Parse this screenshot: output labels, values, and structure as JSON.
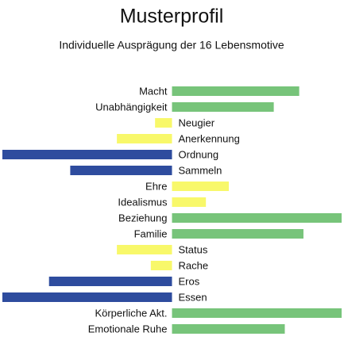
{
  "chart_data": {
    "type": "diverging_bar",
    "title": "Musterprofil",
    "subtitle": "Individuelle Ausprägung der 16 Lebensmotive",
    "categories": [
      "Macht",
      "Unabhängigkeit",
      "Neugier",
      "Anerkennung",
      "Ordnung",
      "Sammeln",
      "Ehre",
      "Idealismus",
      "Beziehung",
      "Familie",
      "Status",
      "Rache",
      "Eros",
      "Essen",
      "Körperliche Akt.",
      "Emotionale Ruhe"
    ],
    "values": [
      1.5,
      1.2,
      -0.2,
      -0.65,
      -2.0,
      -1.2,
      0.67,
      0.4,
      2.0,
      1.55,
      -0.65,
      -0.25,
      -1.45,
      -2.0,
      2.0,
      1.33
    ],
    "colors": [
      "#77c47a",
      "#77c47a",
      "#f8f86a",
      "#f8f86a",
      "#2e4c9e",
      "#2e4c9e",
      "#f8f86a",
      "#f8f86a",
      "#77c47a",
      "#77c47a",
      "#f8f86a",
      "#f8f86a",
      "#2e4c9e",
      "#2e4c9e",
      "#77c47a",
      "#77c47a"
    ],
    "xlim": [
      -2,
      2
    ]
  }
}
